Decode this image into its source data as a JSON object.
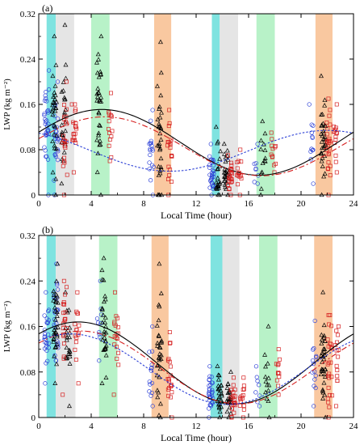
{
  "chart_data": [
    {
      "type": "scatter",
      "panel_label": "(a)",
      "xlabel": "Local Time (hour)",
      "ylabel": "LWP (kg m⁻²)",
      "xlim": [
        0,
        24
      ],
      "ylim": [
        0,
        0.32
      ],
      "xticks": [
        "0",
        "4",
        "8",
        "12",
        "16",
        "20",
        "24"
      ],
      "yticks": [
        "0",
        "0.08",
        "0.16",
        "0.24",
        "0.32"
      ],
      "shaded_bands": [
        {
          "x0": 0.6,
          "x1": 1.3,
          "color": "#7fe3e0"
        },
        {
          "x0": 1.3,
          "x1": 2.7,
          "color": "#e5e5e5"
        },
        {
          "x0": 4.0,
          "x1": 5.4,
          "color": "#b8f2c8"
        },
        {
          "x0": 8.8,
          "x1": 10.1,
          "color": "#f9c8a0"
        },
        {
          "x0": 13.2,
          "x1": 13.8,
          "color": "#7fe3e0"
        },
        {
          "x0": 13.8,
          "x1": 15.2,
          "color": "#e5e5e5"
        },
        {
          "x0": 16.6,
          "x1": 18.0,
          "color": "#b8f2c8"
        },
        {
          "x0": 21.1,
          "x1": 22.4,
          "color": "#f9c8a0"
        }
      ],
      "clusters": [
        {
          "marker": "circle",
          "color": "#2b3fd6",
          "x": 0.6,
          "ymin": 0.0,
          "ymax": 0.22,
          "center": 0.12,
          "n": 32
        },
        {
          "marker": "circle",
          "color": "#2b3fd6",
          "x": 1.3,
          "ymin": 0.0,
          "ymax": 0.2,
          "center": 0.11,
          "n": 24
        },
        {
          "marker": "triangle",
          "color": "#000000",
          "x": 1.2,
          "ymin": 0.0,
          "ymax": 0.28,
          "center": 0.13,
          "n": 30
        },
        {
          "marker": "triangle",
          "color": "#000000",
          "x": 1.9,
          "ymin": 0.02,
          "ymax": 0.3,
          "center": 0.15,
          "n": 26
        },
        {
          "marker": "square",
          "color": "#d62020",
          "x": 2.0,
          "ymin": 0.0,
          "ymax": 0.2,
          "center": 0.1,
          "n": 22
        },
        {
          "marker": "square",
          "color": "#d62020",
          "x": 2.7,
          "ymin": 0.04,
          "ymax": 0.16,
          "center": 0.11,
          "n": 18
        },
        {
          "marker": "triangle",
          "color": "#000000",
          "x": 4.6,
          "ymin": 0.0,
          "ymax": 0.28,
          "center": 0.15,
          "n": 32
        },
        {
          "marker": "square",
          "color": "#d62020",
          "x": 5.5,
          "ymin": 0.06,
          "ymax": 0.18,
          "center": 0.12,
          "n": 14
        },
        {
          "marker": "circle",
          "color": "#2b3fd6",
          "x": 8.6,
          "ymin": 0.0,
          "ymax": 0.15,
          "center": 0.07,
          "n": 18
        },
        {
          "marker": "triangle",
          "color": "#000000",
          "x": 9.2,
          "ymin": 0.0,
          "ymax": 0.27,
          "center": 0.1,
          "n": 32
        },
        {
          "marker": "square",
          "color": "#d62020",
          "x": 10.0,
          "ymin": 0.0,
          "ymax": 0.15,
          "center": 0.08,
          "n": 20
        },
        {
          "marker": "circle",
          "color": "#2b3fd6",
          "x": 13.2,
          "ymin": 0.0,
          "ymax": 0.09,
          "center": 0.04,
          "n": 30
        },
        {
          "marker": "triangle",
          "color": "#000000",
          "x": 13.7,
          "ymin": 0.0,
          "ymax": 0.12,
          "center": 0.04,
          "n": 22
        },
        {
          "marker": "triangle",
          "color": "#000000",
          "x": 14.3,
          "ymin": 0.0,
          "ymax": 0.09,
          "center": 0.035,
          "n": 26
        },
        {
          "marker": "square",
          "color": "#d62020",
          "x": 14.6,
          "ymin": 0.0,
          "ymax": 0.07,
          "center": 0.03,
          "n": 22
        },
        {
          "marker": "square",
          "color": "#d62020",
          "x": 15.3,
          "ymin": 0.0,
          "ymax": 0.08,
          "center": 0.04,
          "n": 14
        },
        {
          "marker": "circle",
          "color": "#2b3fd6",
          "x": 16.6,
          "ymin": 0.02,
          "ymax": 0.09,
          "center": 0.05,
          "n": 8
        },
        {
          "marker": "triangle",
          "color": "#000000",
          "x": 17.1,
          "ymin": 0.0,
          "ymax": 0.13,
          "center": 0.06,
          "n": 14
        },
        {
          "marker": "square",
          "color": "#d62020",
          "x": 17.9,
          "ymin": 0.04,
          "ymax": 0.11,
          "center": 0.08,
          "n": 12
        },
        {
          "marker": "circle",
          "color": "#2b3fd6",
          "x": 20.8,
          "ymin": 0.02,
          "ymax": 0.16,
          "center": 0.09,
          "n": 12
        },
        {
          "marker": "triangle",
          "color": "#000000",
          "x": 21.7,
          "ymin": 0.0,
          "ymax": 0.21,
          "center": 0.1,
          "n": 32
        },
        {
          "marker": "square",
          "color": "#d62020",
          "x": 22.1,
          "ymin": 0.0,
          "ymax": 0.17,
          "center": 0.09,
          "n": 24
        },
        {
          "marker": "square",
          "color": "#d62020",
          "x": 22.6,
          "ymin": 0.04,
          "ymax": 0.16,
          "center": 0.1,
          "n": 14
        }
      ],
      "fits": [
        {
          "color": "#000000",
          "style": "solid",
          "mean": 0.093,
          "amp": 0.058,
          "peak_hour": 4.8
        },
        {
          "color": "#d62020",
          "style": "dashdot",
          "mean": 0.086,
          "amp": 0.052,
          "peak_hour": 5.0
        },
        {
          "color": "#2b3fd6",
          "style": "dotted",
          "mean": 0.078,
          "amp": 0.036,
          "peak_hour": 22.0
        }
      ]
    },
    {
      "type": "scatter",
      "panel_label": "(b)",
      "xlabel": "Local Time (hour)",
      "ylabel": "LWP (kg m⁻²)",
      "xlim": [
        0,
        24
      ],
      "ylim": [
        0,
        0.32
      ],
      "xticks": [
        "0",
        "4",
        "8",
        "12",
        "16",
        "20",
        "24"
      ],
      "yticks": [
        "0",
        "0.08",
        "0.16",
        "0.24",
        "0.32"
      ],
      "shaded_bands": [
        {
          "x0": 0.6,
          "x1": 1.3,
          "color": "#7fe3e0"
        },
        {
          "x0": 1.3,
          "x1": 2.8,
          "color": "#e5e5e5"
        },
        {
          "x0": 4.6,
          "x1": 6.0,
          "color": "#b8f2c8"
        },
        {
          "x0": 8.6,
          "x1": 9.9,
          "color": "#f9c8a0"
        },
        {
          "x0": 13.1,
          "x1": 14.0,
          "color": "#7fe3e0"
        },
        {
          "x0": 14.0,
          "x1": 15.3,
          "color": "#e5e5e5"
        },
        {
          "x0": 16.8,
          "x1": 18.2,
          "color": "#b8f2c8"
        },
        {
          "x0": 21.0,
          "x1": 22.4,
          "color": "#f9c8a0"
        }
      ],
      "clusters": [
        {
          "marker": "circle",
          "color": "#2b3fd6",
          "x": 0.6,
          "ymin": 0.06,
          "ymax": 0.22,
          "center": 0.15,
          "n": 26
        },
        {
          "marker": "circle",
          "color": "#2b3fd6",
          "x": 1.3,
          "ymin": 0.1,
          "ymax": 0.27,
          "center": 0.17,
          "n": 24
        },
        {
          "marker": "triangle",
          "color": "#000000",
          "x": 1.3,
          "ymin": 0.06,
          "ymax": 0.27,
          "center": 0.16,
          "n": 34
        },
        {
          "marker": "triangle",
          "color": "#000000",
          "x": 2.2,
          "ymin": 0.02,
          "ymax": 0.22,
          "center": 0.13,
          "n": 24
        },
        {
          "marker": "square",
          "color": "#d62020",
          "x": 2.0,
          "ymin": 0.04,
          "ymax": 0.24,
          "center": 0.15,
          "n": 20
        },
        {
          "marker": "square",
          "color": "#d62020",
          "x": 2.9,
          "ymin": 0.06,
          "ymax": 0.22,
          "center": 0.14,
          "n": 16
        },
        {
          "marker": "circle",
          "color": "#2b3fd6",
          "x": 4.6,
          "ymin": 0.1,
          "ymax": 0.24,
          "center": 0.17,
          "n": 10
        },
        {
          "marker": "triangle",
          "color": "#000000",
          "x": 5.0,
          "ymin": 0.06,
          "ymax": 0.28,
          "center": 0.15,
          "n": 30
        },
        {
          "marker": "square",
          "color": "#d62020",
          "x": 5.9,
          "ymin": 0.04,
          "ymax": 0.22,
          "center": 0.13,
          "n": 18
        },
        {
          "marker": "circle",
          "color": "#2b3fd6",
          "x": 8.6,
          "ymin": 0.02,
          "ymax": 0.16,
          "center": 0.08,
          "n": 14
        },
        {
          "marker": "triangle",
          "color": "#000000",
          "x": 9.2,
          "ymin": 0.0,
          "ymax": 0.27,
          "center": 0.1,
          "n": 32
        },
        {
          "marker": "square",
          "color": "#d62020",
          "x": 10.0,
          "ymin": 0.0,
          "ymax": 0.15,
          "center": 0.08,
          "n": 20
        },
        {
          "marker": "circle",
          "color": "#2b3fd6",
          "x": 13.1,
          "ymin": 0.0,
          "ymax": 0.09,
          "center": 0.045,
          "n": 30
        },
        {
          "marker": "triangle",
          "color": "#000000",
          "x": 13.8,
          "ymin": 0.0,
          "ymax": 0.09,
          "center": 0.04,
          "n": 26
        },
        {
          "marker": "triangle",
          "color": "#000000",
          "x": 14.5,
          "ymin": 0.0,
          "ymax": 0.08,
          "center": 0.035,
          "n": 24
        },
        {
          "marker": "square",
          "color": "#d62020",
          "x": 14.8,
          "ymin": 0.0,
          "ymax": 0.07,
          "center": 0.03,
          "n": 22
        },
        {
          "marker": "square",
          "color": "#d62020",
          "x": 15.5,
          "ymin": 0.0,
          "ymax": 0.07,
          "center": 0.035,
          "n": 14
        },
        {
          "marker": "circle",
          "color": "#2b3fd6",
          "x": 16.7,
          "ymin": 0.02,
          "ymax": 0.09,
          "center": 0.05,
          "n": 8
        },
        {
          "marker": "triangle",
          "color": "#000000",
          "x": 17.4,
          "ymin": 0.0,
          "ymax": 0.16,
          "center": 0.06,
          "n": 14
        },
        {
          "marker": "square",
          "color": "#d62020",
          "x": 18.2,
          "ymin": 0.04,
          "ymax": 0.12,
          "center": 0.08,
          "n": 12
        },
        {
          "marker": "circle",
          "color": "#2b3fd6",
          "x": 21.0,
          "ymin": 0.02,
          "ymax": 0.17,
          "center": 0.1,
          "n": 14
        },
        {
          "marker": "triangle",
          "color": "#000000",
          "x": 21.7,
          "ymin": 0.0,
          "ymax": 0.22,
          "center": 0.11,
          "n": 34
        },
        {
          "marker": "square",
          "color": "#d62020",
          "x": 22.2,
          "ymin": 0.0,
          "ymax": 0.18,
          "center": 0.1,
          "n": 24
        },
        {
          "marker": "square",
          "color": "#d62020",
          "x": 22.7,
          "ymin": 0.02,
          "ymax": 0.16,
          "center": 0.1,
          "n": 14
        }
      ],
      "fits": [
        {
          "color": "#000000",
          "style": "solid",
          "mean": 0.096,
          "amp": 0.072,
          "peak_hour": 3.0
        },
        {
          "color": "#d62020",
          "style": "dashdot",
          "mean": 0.088,
          "amp": 0.064,
          "peak_hour": 3.2
        },
        {
          "color": "#2b3fd6",
          "style": "dotted",
          "mean": 0.085,
          "amp": 0.062,
          "peak_hour": 2.4
        }
      ]
    }
  ]
}
